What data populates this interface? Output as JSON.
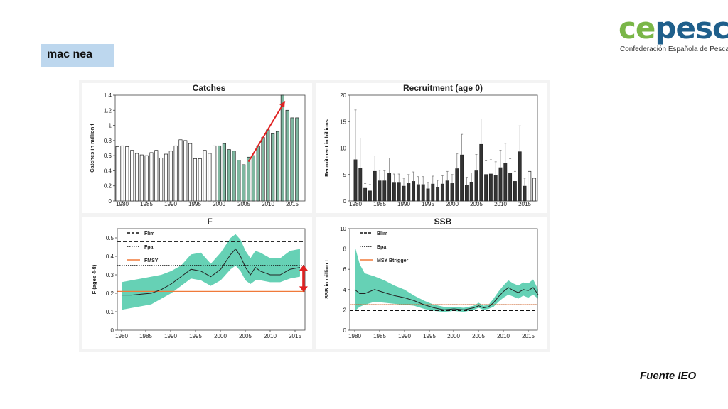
{
  "slide": {
    "title": "mac nea",
    "source": "Fuente IEO"
  },
  "logo": {
    "word_part1": "ce",
    "word_part2": "pesca",
    "subtitle": "Confederación Española de Pesca"
  },
  "colors": {
    "teal_fill": "#66d1b5",
    "bar_green": "#7fb7a0",
    "red_arrow": "#e02020",
    "orange_line": "#f07a3a"
  },
  "x_ticks": [
    "1980",
    "1985",
    "1990",
    "1995",
    "2000",
    "2005",
    "2010",
    "2015"
  ],
  "chart_data": [
    {
      "type": "bar",
      "title": "Catches",
      "ylabel": "Catches in million t",
      "ylim": [
        0,
        1.4
      ],
      "yticks": [
        "0",
        "0.2",
        "0.4",
        "0.6",
        "0.8",
        "1",
        "1.2",
        "1.4"
      ],
      "x": [
        1979,
        1980,
        1981,
        1982,
        1983,
        1984,
        1985,
        1986,
        1987,
        1988,
        1989,
        1990,
        1991,
        1992,
        1993,
        1994,
        1995,
        1996,
        1997,
        1998,
        1999,
        2000,
        2001,
        2002,
        2003,
        2004,
        2005,
        2006,
        2007,
        2008,
        2009,
        2010,
        2011,
        2012,
        2013,
        2014,
        2015,
        2016
      ],
      "values": [
        0.72,
        0.73,
        0.72,
        0.67,
        0.63,
        0.61,
        0.6,
        0.64,
        0.67,
        0.57,
        0.62,
        0.66,
        0.73,
        0.81,
        0.8,
        0.76,
        0.56,
        0.56,
        0.67,
        0.63,
        0.73,
        0.73,
        0.76,
        0.68,
        0.66,
        0.54,
        0.48,
        0.58,
        0.6,
        0.73,
        0.84,
        0.94,
        0.89,
        0.92,
        1.4,
        1.2,
        1.1,
        1.1
      ],
      "highlight_from": 2000,
      "arrow": {
        "from": [
          2006,
          0.52
        ],
        "to": [
          2013.5,
          1.32
        ]
      }
    },
    {
      "type": "bar",
      "title": "Recruitment (age 0)",
      "ylabel": "Recruitment in billions",
      "ylim": [
        0,
        20
      ],
      "yticks": [
        "0",
        "5",
        "10",
        "15",
        "20"
      ],
      "x": [
        1980,
        1981,
        1982,
        1983,
        1984,
        1985,
        1986,
        1987,
        1988,
        1989,
        1990,
        1991,
        1992,
        1993,
        1994,
        1995,
        1996,
        1997,
        1998,
        1999,
        2000,
        2001,
        2002,
        2003,
        2004,
        2005,
        2006,
        2007,
        2008,
        2009,
        2010,
        2011,
        2012,
        2013,
        2014,
        2015,
        2016,
        2017
      ],
      "values": [
        7.8,
        6.2,
        2.4,
        1.9,
        5.6,
        3.8,
        3.8,
        5.3,
        3.4,
        3.4,
        2.8,
        3.3,
        3.7,
        3.1,
        3.1,
        2.3,
        3.2,
        2.6,
        3.2,
        3.8,
        3.3,
        6.1,
        8.7,
        3.0,
        3.5,
        5.7,
        10.7,
        5.0,
        5.1,
        4.9,
        6.3,
        7.2,
        5.3,
        3.7,
        9.3,
        2.8,
        5.6,
        4.3
      ],
      "errors": [
        17.2,
        11.9,
        3.3,
        3.1,
        8.5,
        5.8,
        5.7,
        8.1,
        5.1,
        5.1,
        4.3,
        5.0,
        5.5,
        4.6,
        4.6,
        3.5,
        4.7,
        3.9,
        4.8,
        5.6,
        5.0,
        8.9,
        12.6,
        4.5,
        5.3,
        8.8,
        15.5,
        7.6,
        7.8,
        7.4,
        9.6,
        10.9,
        8.0,
        5.6,
        14.2,
        4.3,
        5.6,
        4.3
      ]
    },
    {
      "type": "line",
      "title": "F",
      "ylabel": "F (ages 4-8)",
      "ylim": [
        0,
        0.55
      ],
      "yticks": [
        "0",
        "0.1",
        "0.2",
        "0.3",
        "0.4",
        "0.5"
      ],
      "x": [
        1980,
        1982,
        1984,
        1986,
        1988,
        1990,
        1992,
        1994,
        1996,
        1998,
        2000,
        2002,
        2003,
        2004,
        2005,
        2006,
        2007,
        2008,
        2010,
        2012,
        2014,
        2016
      ],
      "series": [
        {
          "values": [
            0.19,
            0.19,
            0.195,
            0.2,
            0.22,
            0.25,
            0.29,
            0.33,
            0.32,
            0.29,
            0.33,
            0.41,
            0.44,
            0.4,
            0.34,
            0.3,
            0.34,
            0.32,
            0.3,
            0.3,
            0.33,
            0.34
          ]
        }
      ],
      "band_low": [
        0.11,
        0.12,
        0.13,
        0.14,
        0.17,
        0.2,
        0.24,
        0.28,
        0.27,
        0.24,
        0.27,
        0.33,
        0.35,
        0.32,
        0.27,
        0.25,
        0.27,
        0.27,
        0.26,
        0.26,
        0.28,
        0.29
      ],
      "band_high": [
        0.26,
        0.27,
        0.28,
        0.29,
        0.3,
        0.32,
        0.35,
        0.41,
        0.42,
        0.36,
        0.42,
        0.5,
        0.52,
        0.49,
        0.43,
        0.39,
        0.43,
        0.42,
        0.39,
        0.39,
        0.43,
        0.44
      ],
      "reference_lines": [
        {
          "label": "Flim",
          "value": 0.48,
          "style": "dashed"
        },
        {
          "label": "Fpa",
          "value": 0.35,
          "style": "dotted"
        },
        {
          "label": "FMSY",
          "value": 0.21,
          "style": "solid-orange"
        }
      ],
      "vertical_arrow": {
        "x": 2017,
        "from": 0.21,
        "to": 0.35
      }
    },
    {
      "type": "line",
      "title": "SSB",
      "ylabel": "SSB in million t",
      "ylim": [
        0,
        10
      ],
      "yticks": [
        "0",
        "2",
        "4",
        "6",
        "8",
        "10"
      ],
      "x": [
        1980,
        1981,
        1982,
        1984,
        1986,
        1988,
        1990,
        1992,
        1994,
        1996,
        1998,
        2000,
        2002,
        2004,
        2005,
        2006,
        2007,
        2008,
        2009,
        2010,
        2011,
        2012,
        2013,
        2014,
        2015,
        2016,
        2017
      ],
      "series": [
        {
          "values": [
            4.0,
            3.6,
            3.6,
            4.0,
            3.7,
            3.4,
            3.2,
            2.9,
            2.5,
            2.2,
            2.0,
            2.1,
            2.0,
            2.2,
            2.4,
            2.2,
            2.3,
            2.7,
            3.3,
            3.8,
            4.2,
            3.9,
            3.7,
            4.0,
            3.9,
            4.2,
            3.5
          ]
        }
      ],
      "band_low": [
        1.9,
        2.3,
        2.5,
        2.8,
        2.7,
        2.6,
        2.5,
        2.4,
        2.1,
        1.9,
        1.8,
        1.9,
        1.8,
        2.0,
        2.2,
        2.0,
        2.1,
        2.3,
        2.8,
        3.2,
        3.5,
        3.3,
        3.1,
        3.4,
        3.2,
        3.5,
        3.1
      ],
      "band_high": [
        8.3,
        6.5,
        5.6,
        5.3,
        4.9,
        4.4,
        4.0,
        3.4,
        2.9,
        2.5,
        2.3,
        2.3,
        2.2,
        2.4,
        2.7,
        2.4,
        2.5,
        3.1,
        3.8,
        4.4,
        4.9,
        4.6,
        4.4,
        4.7,
        4.6,
        5.0,
        4.0
      ],
      "reference_lines": [
        {
          "label": "Blim",
          "value": 1.94,
          "style": "dashed"
        },
        {
          "label": "Bpa",
          "value": 2.5,
          "style": "dotted"
        },
        {
          "label": "MSY Btrigger",
          "value": 2.5,
          "style": "solid-orange"
        }
      ]
    }
  ]
}
